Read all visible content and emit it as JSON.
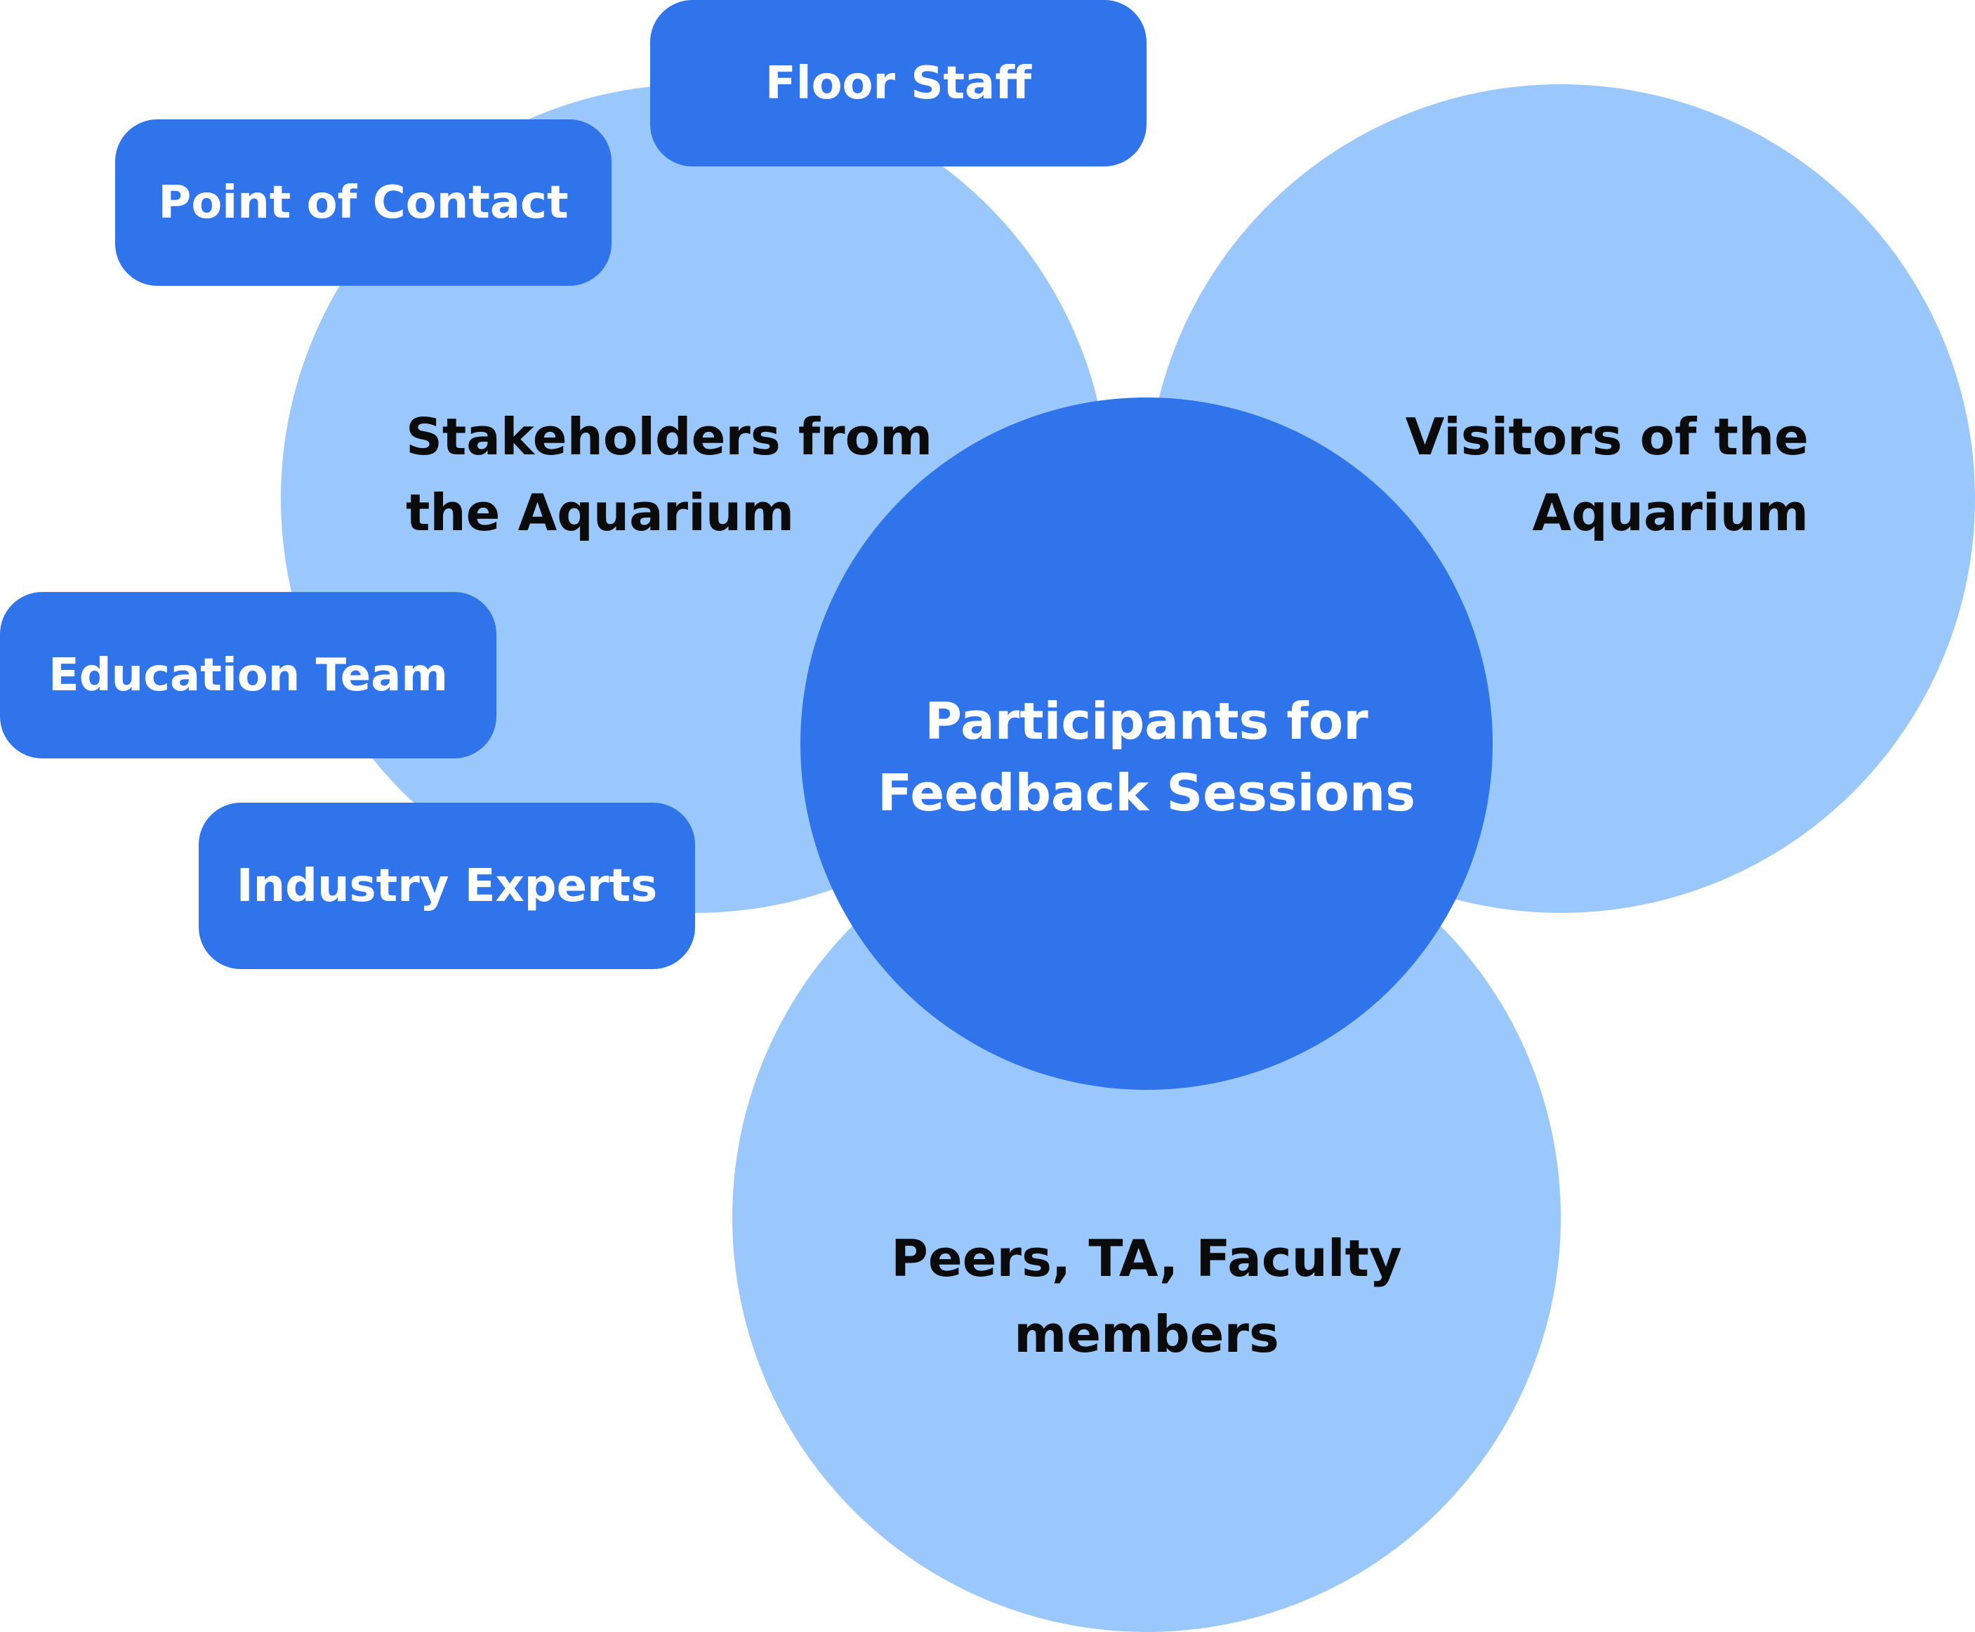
{
  "colors": {
    "light_circle": "#9bc8fc",
    "dark_blue": "#2f74eb",
    "text_dark": "#0b0b0b",
    "text_light": "#ffffff"
  },
  "circles": {
    "stakeholders": {
      "line1": "Stakeholders from",
      "line2": "the Aquarium"
    },
    "visitors": {
      "line1": "Visitors of the",
      "line2": "Aquarium"
    },
    "peers": {
      "line1": "Peers, TA, Faculty",
      "line2": "members"
    },
    "center": {
      "line1": "Participants for",
      "line2": "Feedback Sessions"
    }
  },
  "pills": {
    "floor_staff": "Floor Staff",
    "point_of_contact": "Point of Contact",
    "education_team": "Education Team",
    "industry_experts": "Industry Experts"
  }
}
